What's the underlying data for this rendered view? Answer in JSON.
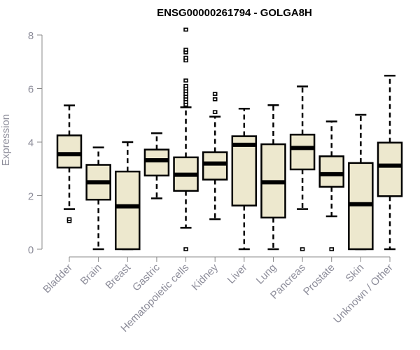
{
  "chart_data": {
    "type": "box",
    "title": "ENSG00000261794 - GOLGA8H",
    "xlabel": "",
    "ylabel": "Expression",
    "ylim": [
      0,
      8
    ],
    "yticks": [
      "0",
      "2",
      "4",
      "6",
      "8"
    ],
    "categories": [
      "Bladder",
      "Brain",
      "Breast",
      "Gastric",
      "Hematopoietic cells",
      "Kidney",
      "Liver",
      "Lung",
      "Pancreas",
      "Prostate",
      "Skin",
      "Unknown / Other"
    ],
    "series": [
      {
        "name": "Bladder",
        "whisker_low": 1.5,
        "q1": 3.05,
        "median": 3.55,
        "q3": 4.25,
        "whisker_high": 5.37,
        "outliers": [
          1.05,
          1.12
        ]
      },
      {
        "name": "Brain",
        "whisker_low": 0,
        "q1": 1.85,
        "median": 2.5,
        "q3": 3.15,
        "whisker_high": 3.8,
        "outliers": []
      },
      {
        "name": "Breast",
        "whisker_low": 0,
        "q1": 0,
        "median": 1.6,
        "q3": 2.9,
        "whisker_high": 4.0,
        "outliers": []
      },
      {
        "name": "Gastric",
        "whisker_low": 1.9,
        "q1": 2.75,
        "median": 3.32,
        "q3": 3.72,
        "whisker_high": 4.33,
        "outliers": []
      },
      {
        "name": "Hematopoietic cells",
        "whisker_low": 0.8,
        "q1": 2.18,
        "median": 2.78,
        "q3": 3.43,
        "whisker_high": 5.3,
        "outliers": [
          0,
          5.4,
          5.5,
          5.6,
          5.7,
          5.8,
          5.9,
          6.0,
          6.1,
          6.3,
          7.05,
          7.15,
          7.35,
          7.45,
          8.2
        ]
      },
      {
        "name": "Kidney",
        "whisker_low": 1.12,
        "q1": 2.6,
        "median": 3.2,
        "q3": 3.62,
        "whisker_high": 4.95,
        "outliers": [
          5.12,
          5.6,
          5.8
        ]
      },
      {
        "name": "Liver",
        "whisker_low": 0,
        "q1": 1.63,
        "median": 3.9,
        "q3": 4.22,
        "whisker_high": 5.25,
        "outliers": []
      },
      {
        "name": "Lung",
        "whisker_low": 0,
        "q1": 1.18,
        "median": 2.5,
        "q3": 3.92,
        "whisker_high": 5.38,
        "outliers": []
      },
      {
        "name": "Pancreas",
        "whisker_low": 1.5,
        "q1": 2.98,
        "median": 3.78,
        "q3": 4.28,
        "whisker_high": 6.08,
        "outliers": [
          0
        ]
      },
      {
        "name": "Prostate",
        "whisker_low": 1.23,
        "q1": 2.33,
        "median": 2.8,
        "q3": 3.47,
        "whisker_high": 4.77,
        "outliers": [
          0
        ]
      },
      {
        "name": "Skin",
        "whisker_low": 0,
        "q1": 0,
        "median": 1.68,
        "q3": 3.22,
        "whisker_high": 5.02,
        "outliers": []
      },
      {
        "name": "Unknown / Other",
        "whisker_low": 0,
        "q1": 1.98,
        "median": 3.12,
        "q3": 3.98,
        "whisker_high": 6.48,
        "outliers": []
      }
    ],
    "colors": {
      "box_fill": "#ede8ce",
      "stroke": "#000000",
      "axis": "#888888",
      "label": "#8c8c99"
    },
    "grid": false
  }
}
